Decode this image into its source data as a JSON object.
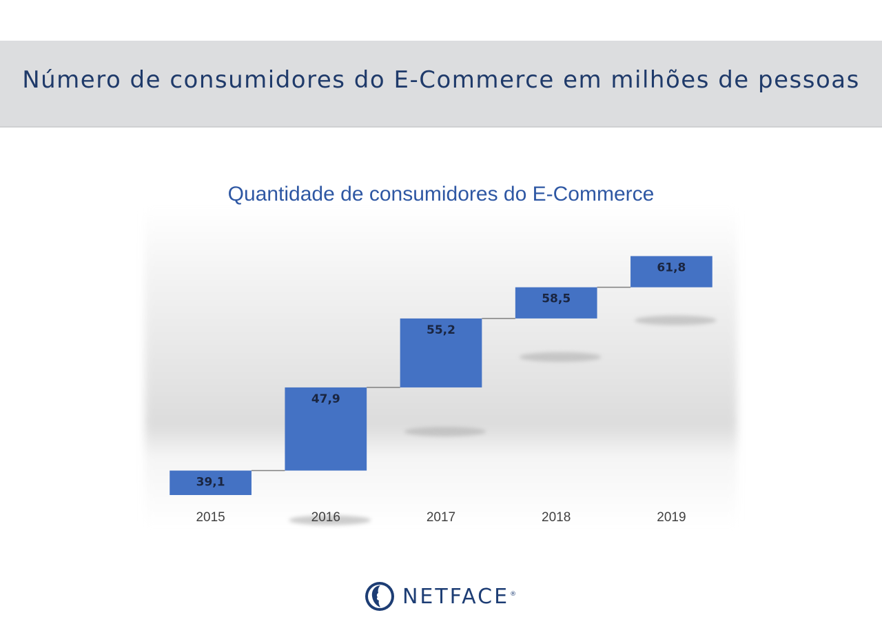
{
  "header": {
    "title": "Número de consumidores do E-Commerce em milhões de pessoas"
  },
  "chart_data": {
    "type": "bar",
    "subtype": "waterfall",
    "title": "Quantidade de consumidores do E-Commerce",
    "categories": [
      "2015",
      "2016",
      "2017",
      "2018",
      "2019"
    ],
    "values": [
      39.1,
      47.9,
      55.2,
      58.5,
      61.8
    ],
    "value_labels": [
      "39,1",
      "47,9",
      "55,2",
      "58,5",
      "61,8"
    ],
    "xlabel": "",
    "ylabel": "",
    "ylim": [
      36,
      63
    ],
    "grid": false,
    "colors": {
      "bar": "#4472c4",
      "connector": "#7f7f7f"
    }
  },
  "footer": {
    "brand": "NETFACE",
    "registered_mark": "®",
    "brand_color": "#1d3d74"
  }
}
